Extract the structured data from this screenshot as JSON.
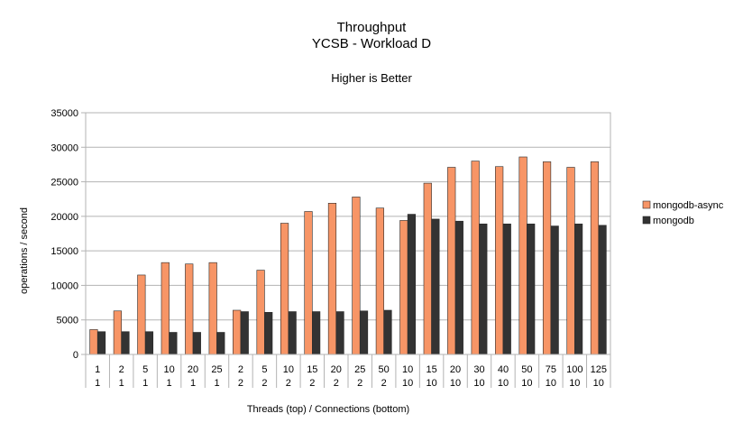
{
  "chart_data": {
    "type": "bar",
    "title": "Throughput",
    "subtitle": "YCSB - Workload D",
    "note": "Higher is Better",
    "xlabel": "Threads (top) / Connections (bottom)",
    "ylabel": "operations / second",
    "ylim": [
      0,
      35000
    ],
    "yticks": [
      0,
      5000,
      10000,
      15000,
      20000,
      25000,
      30000,
      35000
    ],
    "grid": true,
    "legend_position": "right",
    "categories": [
      {
        "top": "1",
        "bottom": "1"
      },
      {
        "top": "2",
        "bottom": "1"
      },
      {
        "top": "5",
        "bottom": "1"
      },
      {
        "top": "10",
        "bottom": "1"
      },
      {
        "top": "20",
        "bottom": "1"
      },
      {
        "top": "25",
        "bottom": "1"
      },
      {
        "top": "2",
        "bottom": "2"
      },
      {
        "top": "5",
        "bottom": "2"
      },
      {
        "top": "10",
        "bottom": "2"
      },
      {
        "top": "15",
        "bottom": "2"
      },
      {
        "top": "20",
        "bottom": "2"
      },
      {
        "top": "25",
        "bottom": "2"
      },
      {
        "top": "50",
        "bottom": "2"
      },
      {
        "top": "10",
        "bottom": "10"
      },
      {
        "top": "15",
        "bottom": "10"
      },
      {
        "top": "20",
        "bottom": "10"
      },
      {
        "top": "30",
        "bottom": "10"
      },
      {
        "top": "40",
        "bottom": "10"
      },
      {
        "top": "50",
        "bottom": "10"
      },
      {
        "top": "75",
        "bottom": "10"
      },
      {
        "top": "100",
        "bottom": "10"
      },
      {
        "top": "125",
        "bottom": "10"
      }
    ],
    "series": [
      {
        "name": "mongodb-async",
        "color": "#f79566",
        "values": [
          3600,
          6300,
          11500,
          13300,
          13100,
          13300,
          6400,
          12200,
          19000,
          20700,
          21900,
          22800,
          21200,
          19400,
          24800,
          27100,
          28000,
          27200,
          28600,
          27900,
          27100,
          27900
        ]
      },
      {
        "name": "mongodb",
        "color": "#333333",
        "values": [
          3300,
          3300,
          3300,
          3200,
          3200,
          3200,
          6200,
          6100,
          6200,
          6200,
          6200,
          6300,
          6400,
          20300,
          19600,
          19300,
          18900,
          18900,
          18900,
          18600,
          18900,
          18700
        ]
      }
    ]
  }
}
